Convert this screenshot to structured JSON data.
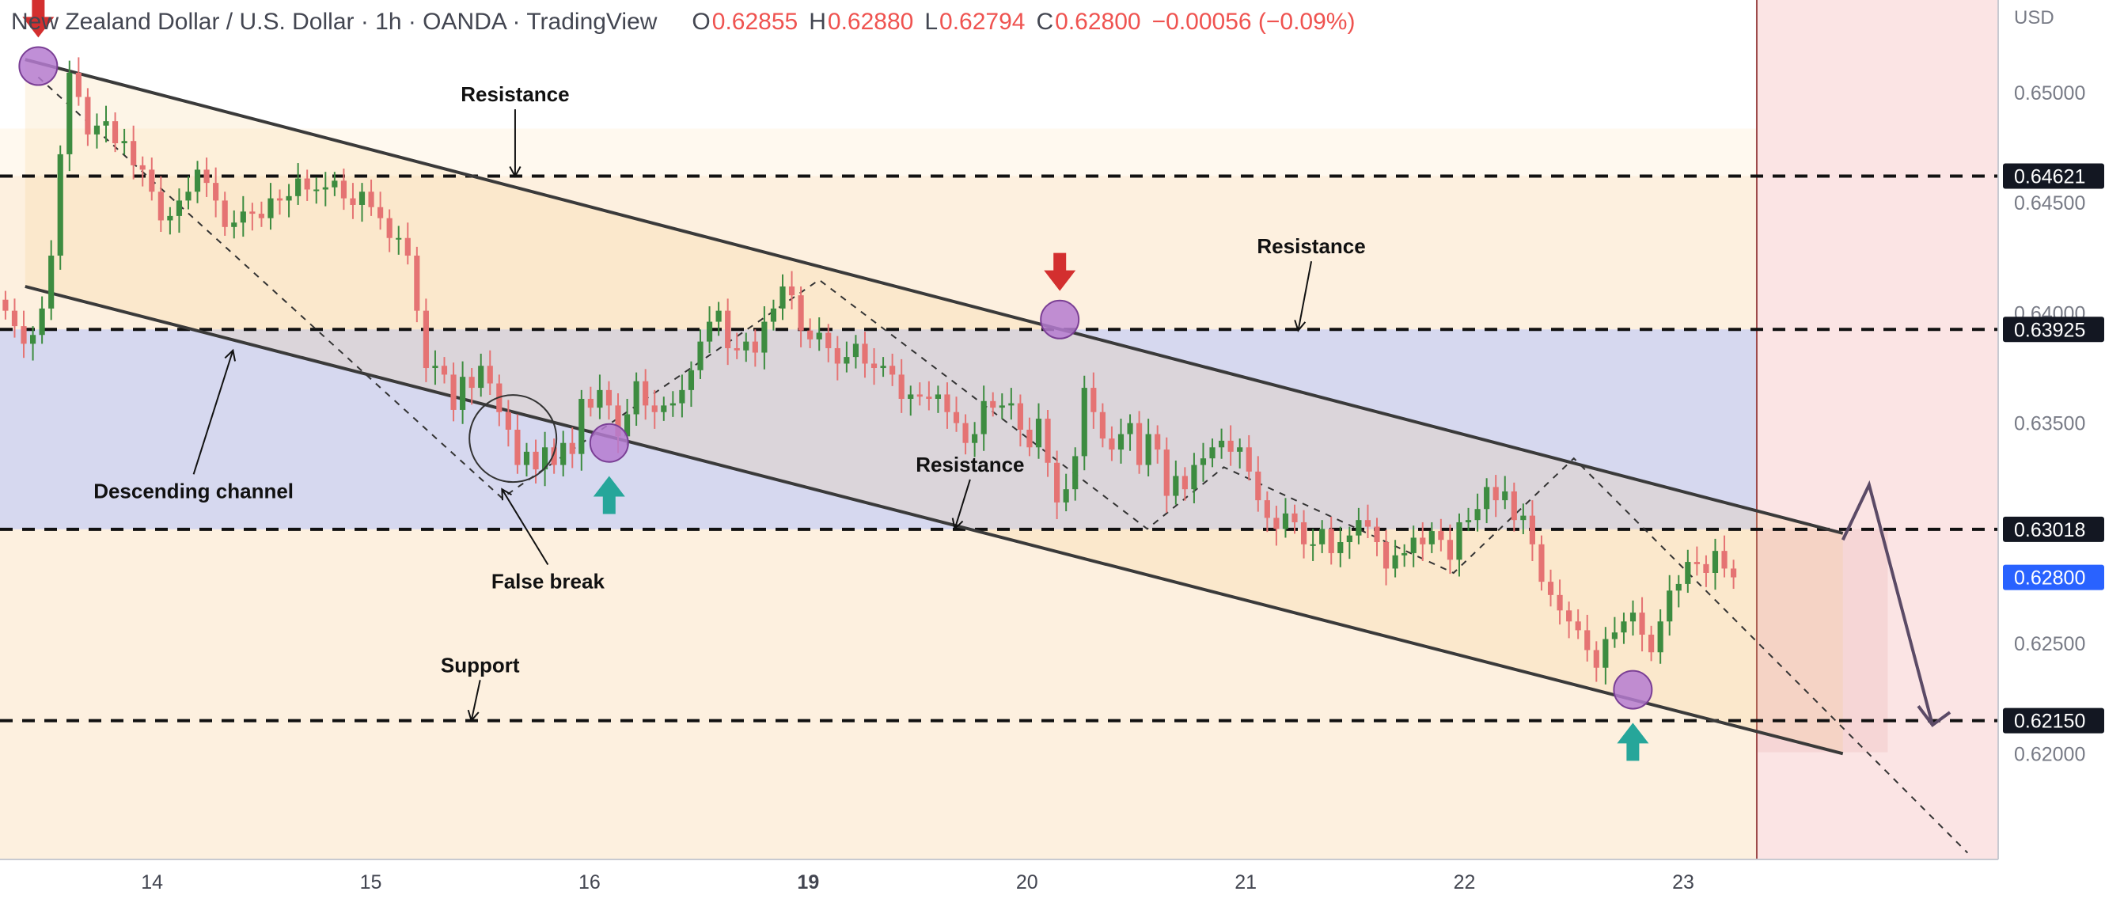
{
  "header": {
    "title": "New Zealand Dollar / U.S. Dollar · 1h · OANDA · TradingView",
    "ohlc": [
      {
        "label": "O",
        "value": "0.62855"
      },
      {
        "label": "H",
        "value": "0.62880"
      },
      {
        "label": "L",
        "value": "0.62794"
      },
      {
        "label": "C",
        "value": "0.62800"
      }
    ],
    "change": "−0.00056 (−0.09%)"
  },
  "colors": {
    "up": "#3d8c40",
    "down": "#e57373",
    "blue_zone": "#d6d8ef",
    "cream_zone": "#fdf0df",
    "pink_zone": "#f6d6d6",
    "price_badge": "#2962ff",
    "arrow_down": "#d32f2f",
    "arrow_up": "#26a69a",
    "circle_fill": "#b57bd0"
  },
  "chart_data": {
    "type": "candlestick",
    "currency_label": "USD",
    "y_ticks": [
      "0.65000",
      "0.64500",
      "0.64000",
      "0.63500",
      "0.63000",
      "0.62500",
      "0.62000"
    ],
    "ylim": [
      0.6152,
      0.6542
    ],
    "x_ticks": [
      {
        "label": "14",
        "t": 14.0
      },
      {
        "label": "15",
        "t": 15.0
      },
      {
        "label": "16",
        "t": 16.0
      },
      {
        "label": "19",
        "t": 17.0
      },
      {
        "label": "20",
        "t": 18.0
      },
      {
        "label": "21",
        "t": 19.0
      },
      {
        "label": "22",
        "t": 20.0
      },
      {
        "label": "23",
        "t": 21.0
      }
    ],
    "xlim": [
      13.305,
      22.44
    ],
    "horizontal_levels": [
      {
        "value": 0.64621,
        "label": "0.64621"
      },
      {
        "value": 0.63925,
        "label": "0.63925"
      },
      {
        "value": 0.63018,
        "label": "0.63018"
      },
      {
        "value": 0.6215,
        "label": "0.62150"
      }
    ],
    "current_price": {
      "value": 0.628,
      "label": "0.62800"
    },
    "annotations": [
      {
        "text": "Resistance",
        "t": 15.66,
        "y": 0.6496
      },
      {
        "text": "Resistance",
        "t": 19.3,
        "y": 0.6427
      },
      {
        "text": "Resistance",
        "t": 17.74,
        "y": 0.6328
      },
      {
        "text": "Support",
        "t": 15.5,
        "y": 0.6237
      },
      {
        "text": "Descending channel",
        "t": 14.19,
        "y": 0.6316
      },
      {
        "text": "False break",
        "t": 15.81,
        "y": 0.6275
      }
    ],
    "channel": {
      "upper": [
        [
          13.42,
          0.6515
        ],
        [
          21.73,
          0.63
        ]
      ],
      "lower": [
        [
          13.42,
          0.6412
        ],
        [
          21.73,
          0.62
        ]
      ]
    },
    "candles": {
      "start_t": 13.33,
      "step": 0.0418,
      "open": 0.6406,
      "closes": [
        0.6401,
        0.6394,
        0.6386,
        0.639,
        0.6402,
        0.6426,
        0.6472,
        0.6509,
        0.6498,
        0.6481,
        0.6485,
        0.6487,
        0.6477,
        0.6478,
        0.6467,
        0.6465,
        0.6455,
        0.6442,
        0.6444,
        0.6451,
        0.6455,
        0.6465,
        0.6459,
        0.6451,
        0.6439,
        0.6441,
        0.6446,
        0.6445,
        0.6443,
        0.6452,
        0.6451,
        0.6453,
        0.6461,
        0.6456,
        0.6456,
        0.6457,
        0.646,
        0.6452,
        0.6449,
        0.6455,
        0.6448,
        0.6443,
        0.6434,
        0.6434,
        0.6426,
        0.6401,
        0.6375,
        0.6376,
        0.6372,
        0.6356,
        0.6371,
        0.6366,
        0.6376,
        0.6368,
        0.6355,
        0.6347,
        0.6331,
        0.6337,
        0.6329,
        0.6339,
        0.6331,
        0.6341,
        0.6336,
        0.6361,
        0.6357,
        0.6365,
        0.6358,
        0.6344,
        0.6354,
        0.6369,
        0.6358,
        0.6355,
        0.6358,
        0.6359,
        0.6365,
        0.6374,
        0.6387,
        0.6396,
        0.6401,
        0.6384,
        0.6383,
        0.6387,
        0.6382,
        0.6396,
        0.6402,
        0.6412,
        0.6408,
        0.6392,
        0.6388,
        0.6391,
        0.6384,
        0.6377,
        0.638,
        0.6386,
        0.6377,
        0.6375,
        0.6376,
        0.6372,
        0.6361,
        0.6363,
        0.6362,
        0.6361,
        0.6363,
        0.6355,
        0.635,
        0.6341,
        0.6345,
        0.636,
        0.6357,
        0.6358,
        0.6359,
        0.6347,
        0.6339,
        0.6352,
        0.6332,
        0.6314,
        0.632,
        0.6335,
        0.6366,
        0.6355,
        0.6343,
        0.6338,
        0.6345,
        0.635,
        0.6331,
        0.6345,
        0.6338,
        0.6317,
        0.6326,
        0.632,
        0.6331,
        0.6334,
        0.6339,
        0.6342,
        0.6337,
        0.6339,
        0.6328,
        0.6315,
        0.6307,
        0.6302,
        0.6309,
        0.6305,
        0.6295,
        0.6295,
        0.6302,
        0.6291,
        0.6296,
        0.6299,
        0.6306,
        0.6303,
        0.6296,
        0.6284,
        0.629,
        0.6291,
        0.6298,
        0.6295,
        0.6301,
        0.6297,
        0.6288,
        0.6305,
        0.6306,
        0.6311,
        0.6321,
        0.6315,
        0.6319,
        0.6306,
        0.6308,
        0.6295,
        0.6278,
        0.6272,
        0.6265,
        0.626,
        0.6256,
        0.6247,
        0.6239,
        0.6252,
        0.6255,
        0.626,
        0.6264,
        0.6254,
        0.6246,
        0.626,
        0.6274,
        0.6277,
        0.6287,
        0.6286,
        0.6282,
        0.6292,
        0.6284,
        0.628
      ]
    }
  }
}
